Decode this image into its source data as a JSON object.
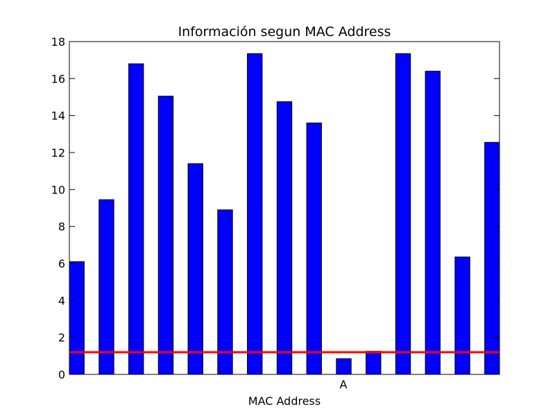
{
  "chart_data": {
    "type": "bar",
    "title": "Información segun MAC Address",
    "xlabel": "MAC Address",
    "ylabel": "",
    "ylim": [
      0,
      18
    ],
    "yticks": [
      0,
      2,
      4,
      6,
      8,
      10,
      12,
      14,
      16,
      18
    ],
    "categories": [
      "",
      "",
      "",
      "",
      "",
      "",
      "",
      "",
      "",
      "",
      "",
      "",
      "",
      "",
      ""
    ],
    "x_tick_label": "A",
    "values": [
      6.1,
      9.45,
      16.8,
      15.05,
      11.4,
      8.9,
      17.35,
      14.75,
      13.6,
      0.85,
      1.25,
      17.35,
      16.4,
      6.35,
      12.55
    ],
    "reference_line": 1.2,
    "grid": false,
    "legend": "none",
    "colors": {
      "bar": "#0000ff",
      "bar_edge": "#000000",
      "reference_line": "#ff0000"
    }
  }
}
